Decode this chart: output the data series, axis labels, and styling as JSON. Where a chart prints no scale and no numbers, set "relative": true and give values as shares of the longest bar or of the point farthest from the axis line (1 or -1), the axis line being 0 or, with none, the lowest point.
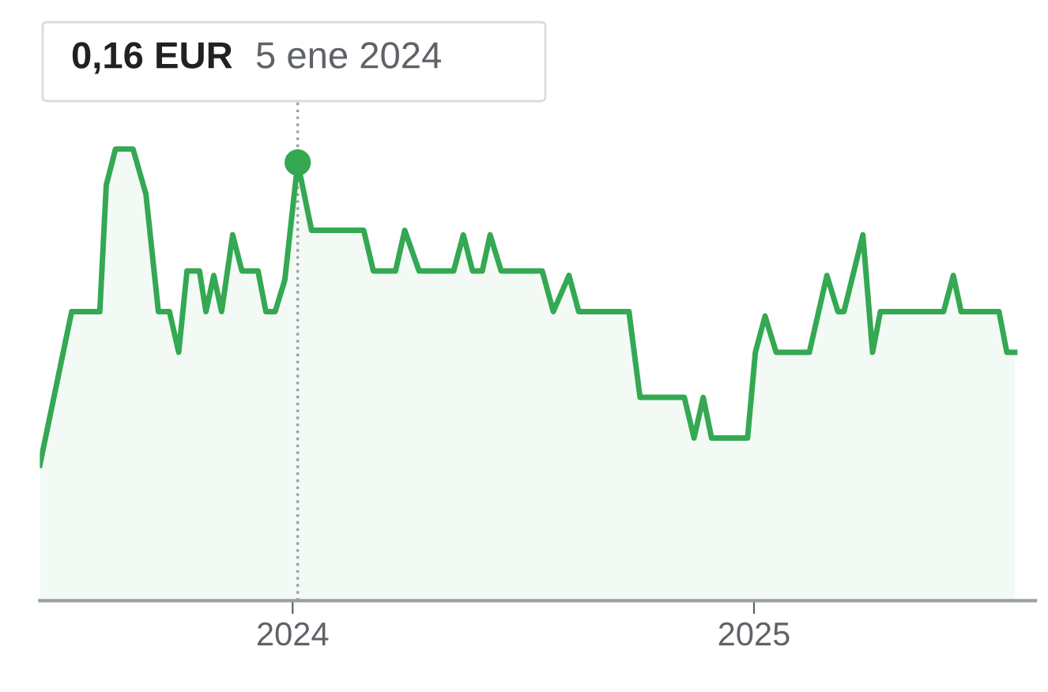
{
  "chart_data": {
    "type": "area",
    "relative": true,
    "color": "#34a853",
    "x": [
      2023.452,
      2023.521,
      2023.582,
      2023.596,
      2023.616,
      2023.654,
      2023.682,
      2023.709,
      2023.733,
      2023.753,
      2023.771,
      2023.798,
      2023.812,
      2023.829,
      2023.846,
      2023.87,
      2023.89,
      2023.925,
      2023.942,
      2023.962,
      2023.983,
      2024.011,
      2024.041,
      2024.154,
      2024.175,
      2024.223,
      2024.243,
      2024.274,
      2024.349,
      2024.37,
      2024.39,
      2024.411,
      2024.428,
      2024.452,
      2024.541,
      2024.565,
      2024.599,
      2024.62,
      2024.729,
      2024.753,
      2024.849,
      2024.87,
      2024.89,
      2024.908,
      2024.986,
      2025.003,
      2025.024,
      2025.048,
      2025.12,
      2025.158,
      2025.182,
      2025.195,
      2025.236,
      2025.257,
      2025.274,
      2025.411,
      2025.432,
      2025.449,
      2025.531,
      2025.548,
      2025.565
    ],
    "values": [
      0.3,
      0.64,
      0.64,
      0.92,
      1,
      1,
      0.9,
      0.64,
      0.64,
      0.55,
      0.73,
      0.73,
      0.64,
      0.72,
      0.64,
      0.81,
      0.73,
      0.73,
      0.64,
      0.64,
      0.71,
      0.97,
      0.82,
      0.82,
      0.73,
      0.73,
      0.82,
      0.73,
      0.73,
      0.81,
      0.73,
      0.73,
      0.81,
      0.73,
      0.73,
      0.64,
      0.72,
      0.64,
      0.64,
      0.45,
      0.45,
      0.36,
      0.45,
      0.36,
      0.36,
      0.55,
      0.63,
      0.55,
      0.55,
      0.72,
      0.64,
      0.64,
      0.81,
      0.55,
      0.64,
      0.64,
      0.72,
      0.64,
      0.64,
      0.55,
      0.55
    ],
    "xlim": [
      2023.452,
      2025.61
    ],
    "xticks": [
      2024,
      2025
    ],
    "tick_labels": "x",
    "ref_lines": [
      {
        "axis": "x",
        "value": 2024.011,
        "color": "#9aa0a6",
        "line_style": "dotted"
      }
    ],
    "annotations": [
      {
        "text": "0,16 EUR",
        "x": 2024.011,
        "y": 0.97
      },
      "5 ene 2024"
    ]
  }
}
